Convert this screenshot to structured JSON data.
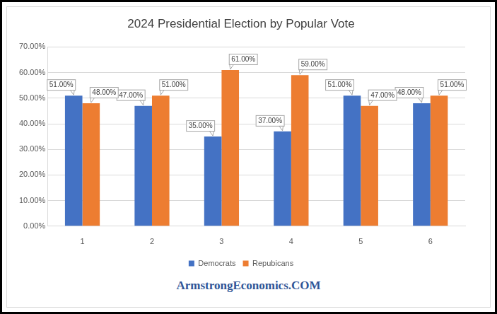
{
  "chart_data": {
    "type": "bar",
    "title": "2024 Presidential Election by Popular Vote",
    "categories": [
      "1",
      "2",
      "3",
      "4",
      "5",
      "6"
    ],
    "series": [
      {
        "name": "Democrats",
        "color": "#4472c4",
        "values": [
          51,
          47,
          35,
          37,
          51,
          48
        ],
        "value_labels": [
          "51.00%",
          "47.00%",
          "35.00%",
          "37.00%",
          "51.00%",
          "48.00%"
        ]
      },
      {
        "name": "Repubicans",
        "color": "#ed7d31",
        "values": [
          48,
          51,
          61,
          59,
          47,
          51
        ],
        "value_labels": [
          "48.00%",
          "51.00%",
          "61.00%",
          "59.00%",
          "47.00%",
          "51.00%"
        ]
      }
    ],
    "ylim": [
      0,
      70
    ],
    "yticks": [
      {
        "value": 0,
        "label": "0.00%"
      },
      {
        "value": 10,
        "label": "10.00%"
      },
      {
        "value": 20,
        "label": "20.00%"
      },
      {
        "value": 30,
        "label": "30.00%"
      },
      {
        "value": 40,
        "label": "40.00%"
      },
      {
        "value": 50,
        "label": "50.00%"
      },
      {
        "value": 60,
        "label": "60.00%"
      },
      {
        "value": 70,
        "label": "70.00%"
      }
    ],
    "grid": true,
    "legend": "bottom",
    "data_labels": true,
    "annotations": [
      "ArmstrongEconomics.COM"
    ]
  }
}
